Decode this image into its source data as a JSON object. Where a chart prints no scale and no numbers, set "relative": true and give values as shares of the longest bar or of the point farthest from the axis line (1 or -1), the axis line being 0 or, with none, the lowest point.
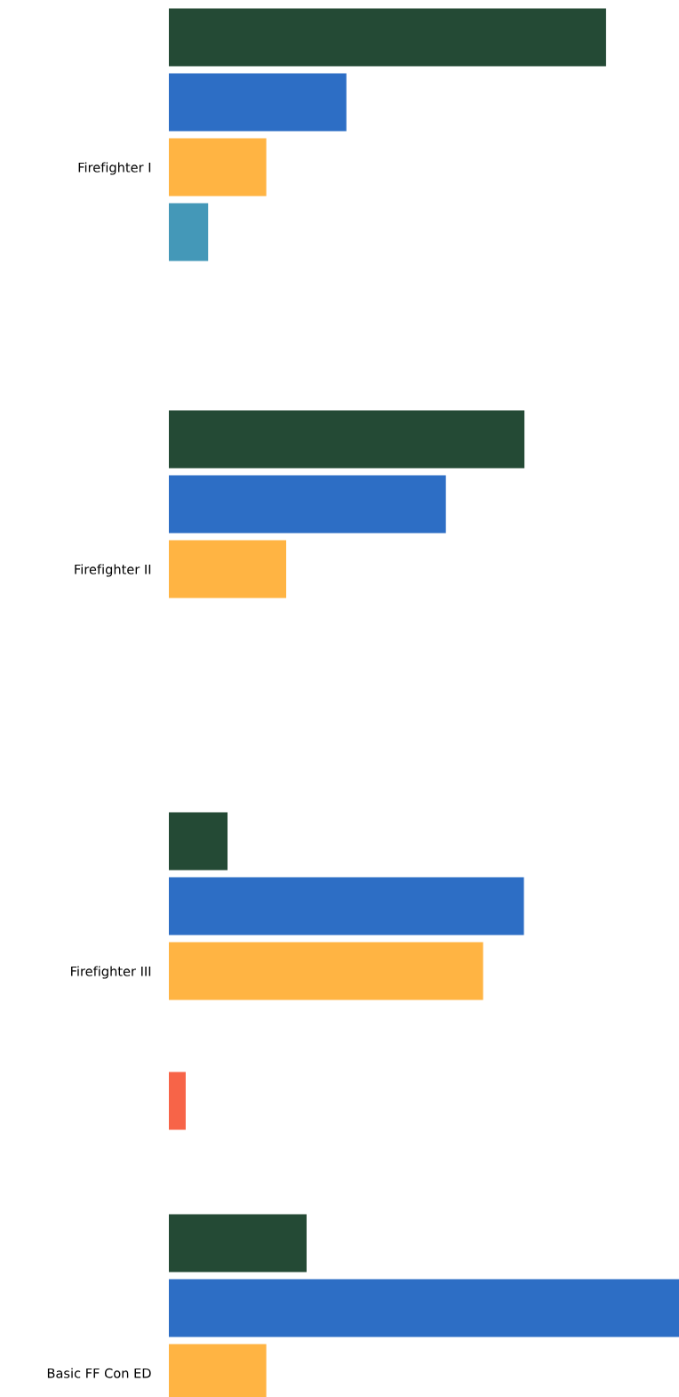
{
  "chart_data": {
    "type": "bar",
    "orientation": "horizontal",
    "relative": true,
    "categories": [
      "Firefighter I",
      "Firefighter II",
      "Firefighter III",
      "Basic FF Con ED"
    ],
    "series": [
      {
        "color": "#244a35",
        "values": [
          0.857,
          0.697,
          0.115,
          0.27
        ]
      },
      {
        "color": "#2d6ec5",
        "values": [
          0.348,
          0.543,
          0.696,
          1
        ]
      },
      {
        "color": "#ffb443",
        "values": [
          0.191,
          0.23,
          0.616,
          0.191
        ]
      },
      {
        "color": "#4498b8",
        "values": [
          0.077,
          null,
          null,
          null
        ]
      },
      {
        "color": "#f76448",
        "values": [
          null,
          null,
          0.033,
          null
        ]
      }
    ],
    "grid": false,
    "legend": false
  }
}
